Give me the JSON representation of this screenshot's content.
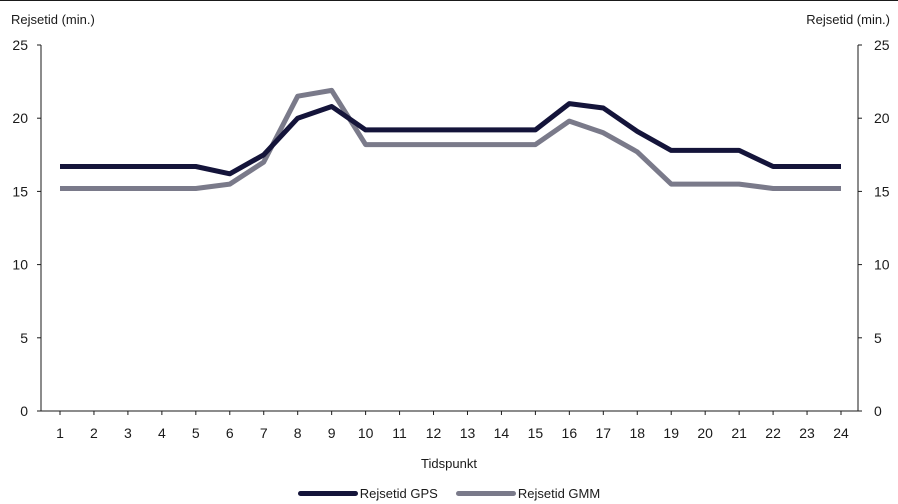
{
  "chart_data": {
    "type": "line",
    "x": [
      1,
      2,
      3,
      4,
      5,
      6,
      7,
      8,
      9,
      10,
      11,
      12,
      13,
      14,
      15,
      16,
      17,
      18,
      19,
      20,
      21,
      22,
      23,
      24
    ],
    "series": [
      {
        "name": "Rejsetid GPS",
        "color": "#14143a",
        "values": [
          16.7,
          16.7,
          16.7,
          16.7,
          16.7,
          16.2,
          17.5,
          20.0,
          20.8,
          19.2,
          19.2,
          19.2,
          19.2,
          19.2,
          19.2,
          21.0,
          20.7,
          19.1,
          17.8,
          17.8,
          17.8,
          16.7,
          16.7,
          16.7
        ]
      },
      {
        "name": "Rejsetid GMM",
        "color": "#7a7a8a",
        "values": [
          15.2,
          15.2,
          15.2,
          15.2,
          15.2,
          15.5,
          17.0,
          21.5,
          21.9,
          18.2,
          18.2,
          18.2,
          18.2,
          18.2,
          18.2,
          19.8,
          19.0,
          17.7,
          15.5,
          15.5,
          15.5,
          15.2,
          15.2,
          15.2
        ]
      }
    ],
    "xlabel": "Tidspunkt",
    "ylabel_left": "Rejsetid (min.)",
    "ylabel_right": "Rejsetid (min.)",
    "ylim": [
      0,
      25
    ],
    "yticks": [
      0,
      5,
      10,
      15,
      20,
      25
    ],
    "grid": false,
    "legend_position": "bottom-center"
  }
}
